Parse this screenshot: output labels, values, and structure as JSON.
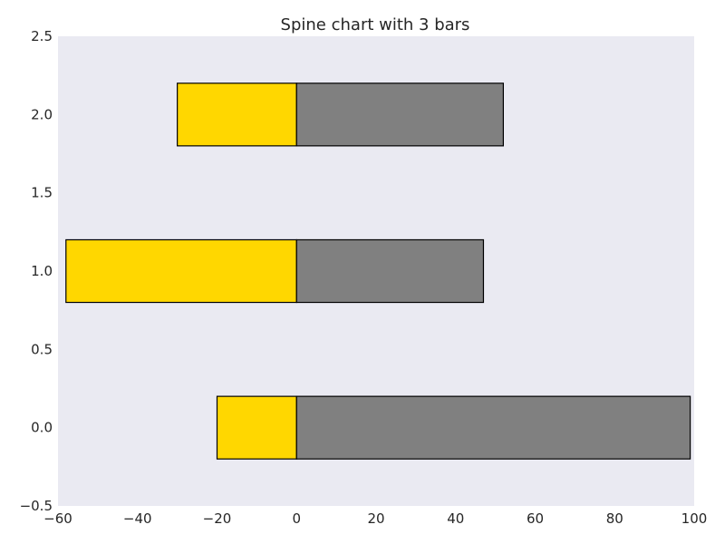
{
  "chart_data": {
    "type": "bar",
    "orientation": "horizontal",
    "stacked": "diverging",
    "title": "Spine chart with 3 bars",
    "xlabel": "",
    "ylabel": "",
    "xlim": [
      -60,
      100
    ],
    "ylim": [
      -0.5,
      2.5
    ],
    "xticks": [
      -60,
      -40,
      -20,
      0,
      20,
      40,
      60,
      80,
      100
    ],
    "xtick_labels": [
      "−60",
      "−40",
      "−20",
      "0",
      "20",
      "40",
      "60",
      "80",
      "100"
    ],
    "yticks": [
      -0.5,
      0.0,
      0.5,
      1.0,
      1.5,
      2.0,
      2.5
    ],
    "ytick_labels": [
      "−0.5",
      "0.0",
      "0.5",
      "1.0",
      "1.5",
      "2.0",
      "2.5"
    ],
    "bar_height": 0.4,
    "grid": false,
    "legend": "none",
    "categories": [
      0,
      1,
      2
    ],
    "series": [
      {
        "values": [
          -20,
          -58,
          -30
        ],
        "color": "#FFD700"
      },
      {
        "values": [
          99,
          47,
          52
        ],
        "color": "#808080"
      }
    ],
    "colors": {
      "background": "#EAEAF2",
      "edge": "#000000"
    }
  }
}
